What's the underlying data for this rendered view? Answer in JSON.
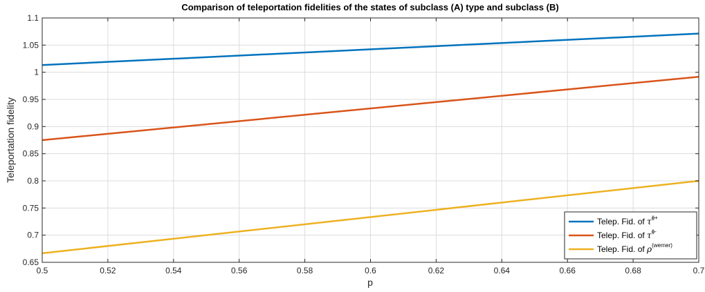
{
  "chart_data": {
    "type": "line",
    "title": "Comparison of teleportation fidelities of the states of subclass (A) type and subclass (B)",
    "xlabel": "p",
    "ylabel": "Teleportation fidelity",
    "xlim": [
      0.5,
      0.7
    ],
    "ylim": [
      0.65,
      1.1
    ],
    "x_ticks": [
      0.5,
      0.52,
      0.54,
      0.56,
      0.58,
      0.6,
      0.62,
      0.64,
      0.66,
      0.68,
      0.7
    ],
    "x_tick_labels": [
      "0.5",
      "0.52",
      "0.54",
      "0.56",
      "0.58",
      "0.6",
      "0.62",
      "0.64",
      "0.66",
      "0.68",
      "0.7"
    ],
    "y_ticks": [
      0.65,
      0.7,
      0.75,
      0.8,
      0.85,
      0.9,
      0.95,
      1,
      1.05,
      1.1
    ],
    "y_tick_labels": [
      "0.65",
      "0.7",
      "0.75",
      "0.8",
      "0.85",
      "0.9",
      "0.95",
      "1",
      "1.05",
      "1.1"
    ],
    "grid": true,
    "legend_position": "bottom-right",
    "series": [
      {
        "legend_prefix": "Telep. Fid. of ",
        "symbol": "τ",
        "superscript": "ϕ+",
        "color": "#0072BD",
        "x": [
          0.5,
          0.7
        ],
        "y": [
          1.0133,
          1.0712
        ]
      },
      {
        "legend_prefix": "Telep. Fid. of ",
        "symbol": "τ",
        "superscript": "ϕ-",
        "color": "#D95319",
        "x": [
          0.5,
          0.7
        ],
        "y": [
          0.875,
          0.9917
        ]
      },
      {
        "legend_prefix": "Telep. Fid. of ",
        "symbol": "ρ",
        "superscript": "(werner)",
        "color": "#EDB120",
        "x": [
          0.5,
          0.7
        ],
        "y": [
          0.6667,
          0.8
        ]
      }
    ]
  }
}
